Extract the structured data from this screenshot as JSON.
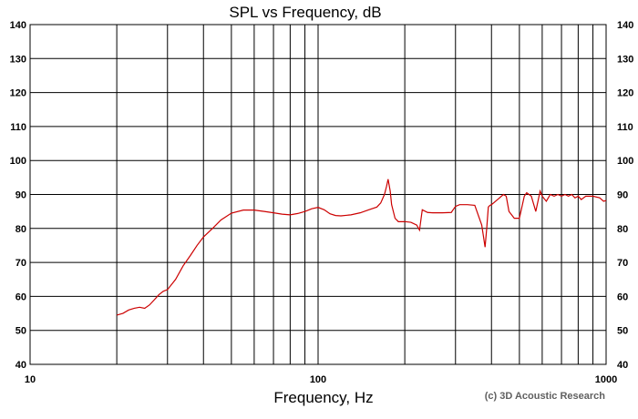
{
  "chart_data": {
    "type": "line",
    "title": "SPL vs Frequency, dB",
    "xlabel": "Frequency, Hz",
    "ylabel": "",
    "x_scale": "log",
    "xlim": [
      10,
      1000
    ],
    "ylim": [
      40,
      140
    ],
    "grid": true,
    "x_tick_labels": [
      "10",
      "100",
      "1000"
    ],
    "y_tick_labels": [
      "40",
      "50",
      "60",
      "70",
      "80",
      "90",
      "100",
      "110",
      "120",
      "130",
      "140"
    ],
    "credit": "(c) 3D Acoustic Research",
    "line_color": "#cc0000",
    "series": [
      {
        "x": [
          20,
          21,
          22,
          23,
          24,
          25,
          26,
          27,
          28,
          29,
          30,
          32,
          34,
          36,
          38,
          40,
          43,
          46,
          50,
          55,
          60,
          65,
          70,
          75,
          80,
          85,
          90,
          95,
          100,
          105,
          110,
          115,
          120,
          130,
          140,
          150,
          160,
          165,
          170,
          173,
          175,
          178,
          180,
          185,
          190,
          200,
          210,
          220,
          225,
          230,
          240,
          250,
          270,
          290,
          300,
          310,
          330,
          350,
          370,
          380,
          385,
          390,
          395,
          400,
          420,
          440,
          450,
          460,
          480,
          500,
          520,
          530,
          550,
          570,
          580,
          590,
          600,
          620,
          640,
          660,
          680,
          700,
          720,
          740,
          760,
          780,
          800,
          820,
          850,
          900,
          950,
          980,
          1000
        ],
        "y": [
          54.5,
          55,
          56,
          56.5,
          56.8,
          56.5,
          57.5,
          59,
          60.5,
          61.5,
          62,
          65,
          69,
          72,
          75,
          77.5,
          80,
          82.5,
          84.5,
          85.4,
          85.4,
          85,
          84.6,
          84.2,
          84,
          84.4,
          85,
          85.8,
          86.2,
          85.5,
          84.3,
          83.8,
          83.7,
          84,
          84.6,
          85.5,
          86.3,
          87.5,
          90,
          92.5,
          94.5,
          91,
          87,
          83,
          82,
          82,
          81.8,
          81,
          79.5,
          85.5,
          84.7,
          84.6,
          84.6,
          84.7,
          86.5,
          87,
          87,
          86.8,
          81,
          74.5,
          80,
          86.3,
          86.8,
          87,
          88.5,
          90,
          89.5,
          85,
          83,
          83,
          89.5,
          90.5,
          89.5,
          85,
          88,
          91,
          89.5,
          88,
          90,
          89.5,
          90,
          89.5,
          90,
          89.5,
          90,
          89,
          89.5,
          88.5,
          89.5,
          89.5,
          89,
          88,
          88.2
        ],
        "color": "#cc0000"
      }
    ]
  }
}
